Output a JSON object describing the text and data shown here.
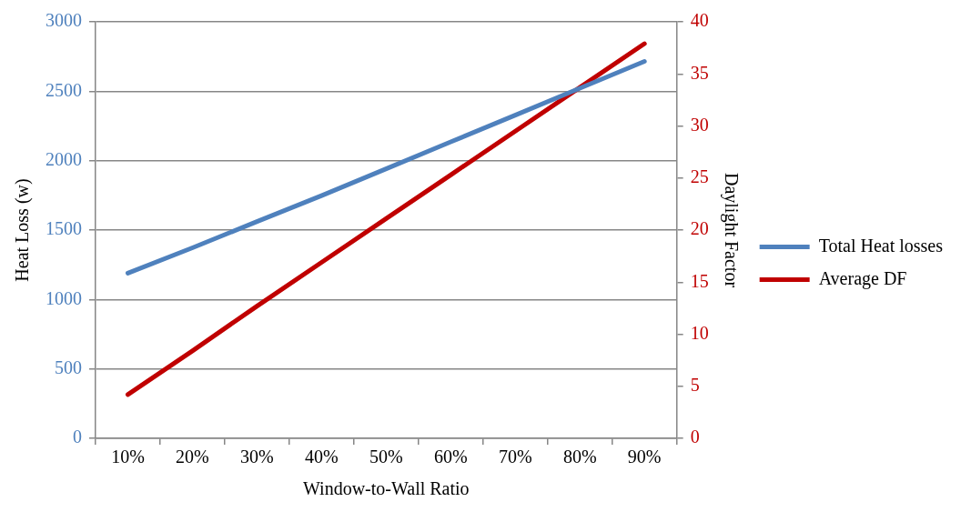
{
  "chart_data": {
    "type": "line",
    "xlabel": "Window-to-Wall Ratio",
    "ylabel": "Heat Loss (w)",
    "y2label": "Daylight Factor",
    "categories": [
      "10%",
      "20%",
      "30%",
      "40%",
      "50%",
      "60%",
      "70%",
      "80%",
      "90%"
    ],
    "series": [
      {
        "name": "Total Heat losses",
        "color": "#4f81bd",
        "values": [
          1190,
          1372,
          1561,
          1748,
          1941,
          2135,
          2328,
          2522,
          2715
        ]
      },
      {
        "name": "Average DF",
        "color": "#c00000",
        "axis": "y2",
        "values": [
          4.2,
          8.4,
          12.7,
          16.9,
          21.1,
          25.3,
          29.5,
          33.7,
          37.9
        ]
      }
    ],
    "ylim": [
      0,
      3000
    ],
    "yticks": [
      0,
      500,
      1000,
      1500,
      2000,
      2500,
      3000
    ],
    "y2lim": [
      0,
      40
    ],
    "y2ticks": [
      0,
      5,
      10,
      15,
      20,
      25,
      30,
      35,
      40
    ],
    "grid": "y",
    "legend": "right",
    "marker": "none",
    "line_style": "solid"
  }
}
